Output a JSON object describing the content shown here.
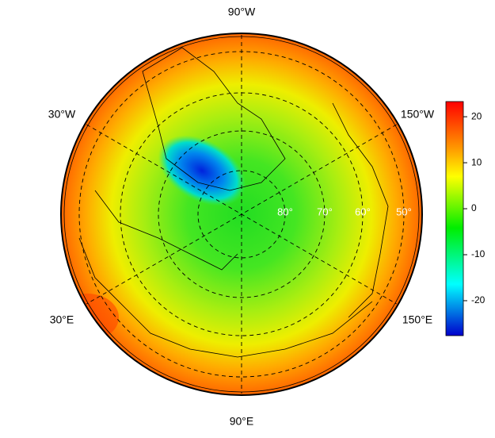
{
  "map": {
    "longitude_labels": [
      "90°W",
      "30°W",
      "150°W",
      "30°E",
      "150°E",
      "90°E"
    ],
    "latitude_labels": [
      "80°",
      "70°",
      "60°",
      "50°"
    ],
    "colorbar": {
      "lim": [
        -27.6,
        23.3
      ],
      "ticks": [
        20,
        10,
        0,
        -10,
        -20
      ]
    }
  }
}
